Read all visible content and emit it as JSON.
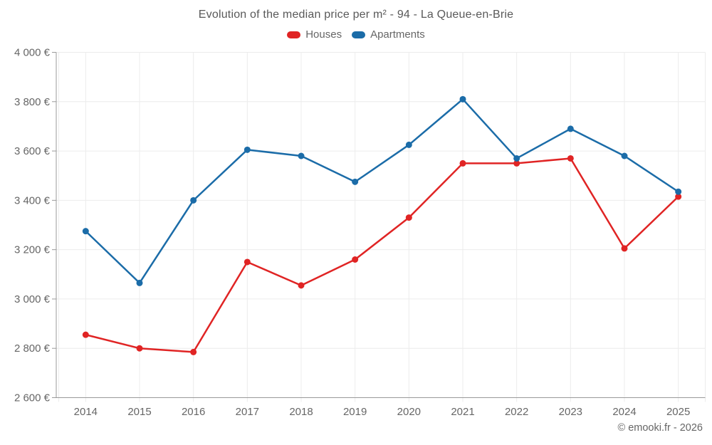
{
  "title": "Evolution of the median price per m² - 94 - La Queue-en-Brie",
  "legend": {
    "items": [
      {
        "label": "Houses",
        "color": "#e02424"
      },
      {
        "label": "Apartments",
        "color": "#1b6ca8"
      }
    ]
  },
  "footer": {
    "credit": "© emooki.fr - 2026"
  },
  "chart_data": {
    "type": "line",
    "title": "Evolution of the median price per m² - 94 - La Queue-en-Brie",
    "categories": [
      "2014",
      "2015",
      "2016",
      "2017",
      "2018",
      "2019",
      "2020",
      "2021",
      "2022",
      "2023",
      "2024",
      "2025"
    ],
    "series": [
      {
        "name": "Houses",
        "color": "#e02424",
        "values": [
          2855,
          2800,
          2785,
          3150,
          3055,
          3160,
          3330,
          3550,
          3550,
          3570,
          3205,
          3415
        ]
      },
      {
        "name": "Apartments",
        "color": "#1b6ca8",
        "values": [
          3275,
          3065,
          3400,
          3605,
          3580,
          3475,
          3625,
          3810,
          3570,
          3690,
          3580,
          3435
        ]
      }
    ],
    "xlabel": "",
    "ylabel": "",
    "ylim": [
      2600,
      4000
    ],
    "ytick_step": 200,
    "ytick_suffix": " €",
    "grid": true,
    "legend_position": "top",
    "marker": "circle"
  },
  "colors": {
    "background": "#ffffff",
    "grid": "#ececec",
    "axis": "#999999",
    "tick_label": "#666666",
    "title_text": "#595959",
    "footer_text": "#666666"
  }
}
